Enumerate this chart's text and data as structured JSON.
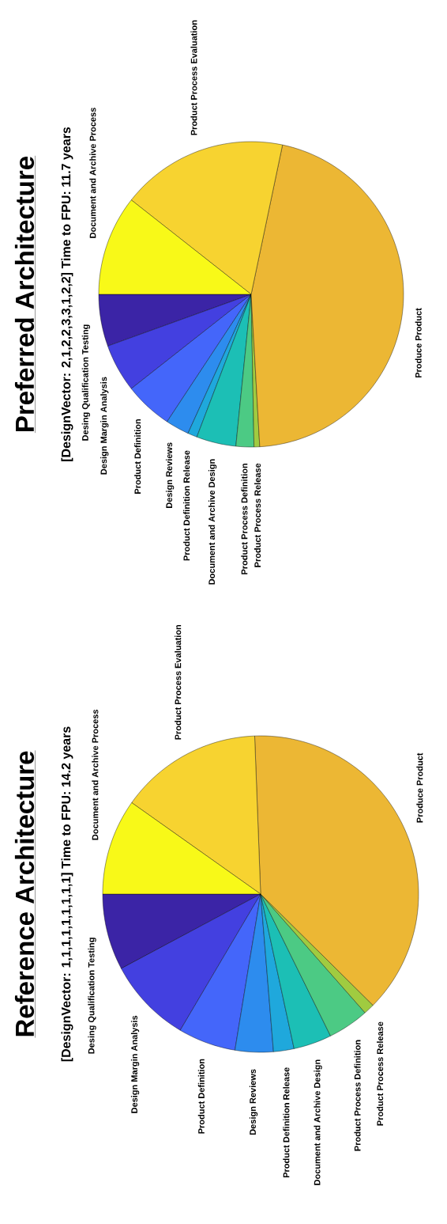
{
  "chart_data": [
    {
      "type": "pie",
      "title": "Reference Architecture",
      "subtitle": "[DesignVector: 1,1,1,1,1,1,1,1,1] Time to FPU: 14.2 years",
      "categories": [
        "Desing Qualification Testing",
        "Design Margin Analysis",
        "Product Definition",
        "Design Reviews",
        "Product Definition Release",
        "Document and Archive Design",
        "Product Process Definition",
        "Product Process Release",
        "Produce Product",
        "Product Process Evaluation",
        "Document and Archive Process"
      ],
      "values": [
        7.8,
        8.7,
        5.9,
        3.9,
        2.1,
        3.9,
        4.2,
        1.1,
        38.0,
        14.6,
        9.8
      ],
      "colors": [
        "#3b24a6",
        "#4340e0",
        "#4466fa",
        "#2d8cee",
        "#1fa8dc",
        "#1cbfb5",
        "#4cca84",
        "#a0cb40",
        "#ecb734",
        "#f7d330",
        "#f8f918"
      ]
    },
    {
      "type": "pie",
      "title": "Preferred Architecture",
      "subtitle": "[DesignVector: 2,1,2,2,3,3,1,2,2] Time to FPU: 11.7 years",
      "categories": [
        "Desing Qualification Testing",
        "Design Margin Analysis",
        "Product Definition",
        "Design Reviews",
        "Product Definition Release",
        "Document and Archive Design",
        "Product Process Definition",
        "Product Process Release",
        "Produce Product",
        "Product Process Evaluation",
        "Document and Archive Process"
      ],
      "values": [
        5.5,
        5.1,
        5.1,
        2.5,
        1.0,
        4.2,
        1.9,
        0.6,
        45.8,
        17.7,
        10.6
      ],
      "colors": [
        "#3b24a6",
        "#4340e0",
        "#4466fa",
        "#2d8cee",
        "#1fa8dc",
        "#1cbfb5",
        "#4cca84",
        "#a0cb40",
        "#ecb734",
        "#f7d330",
        "#f8f918"
      ]
    }
  ]
}
